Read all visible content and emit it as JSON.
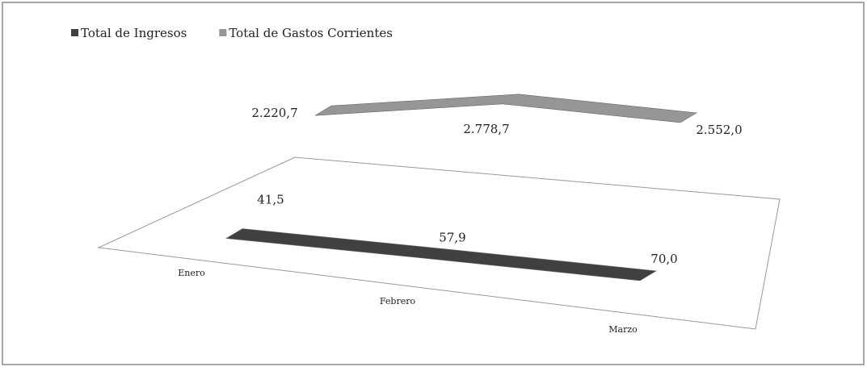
{
  "chart_data": {
    "type": "line",
    "categories": [
      "Enero",
      "Febrero",
      "Marzo"
    ],
    "series": [
      {
        "name": "Total de Ingresos",
        "color": "#404040",
        "values": [
          41.5,
          57.9,
          70.0
        ],
        "value_labels": [
          "41,5",
          "57,9",
          "70,0"
        ]
      },
      {
        "name": "Total de Gastos Corrientes",
        "color": "#969696",
        "values": [
          2220.7,
          2778.7,
          2552.0
        ],
        "value_labels": [
          "2.220,7",
          "2.778,7",
          "2.552,0"
        ]
      }
    ],
    "legend": "top-left"
  }
}
